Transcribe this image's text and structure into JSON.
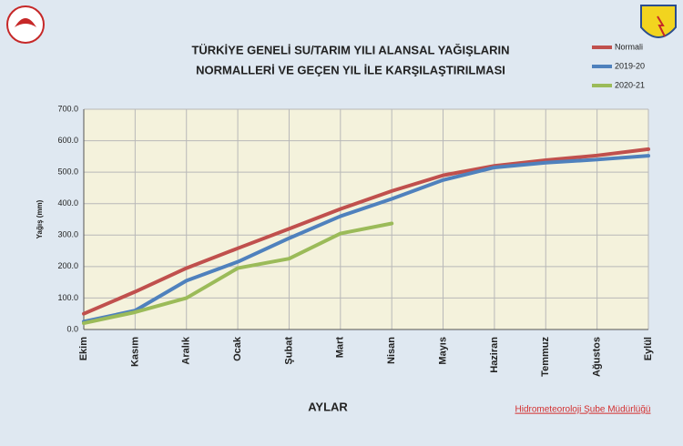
{
  "chart_data": {
    "type": "line",
    "title": [
      "TÜRKİYE GENELİ  SU/TARIM YILI ALANSAL YAĞIŞLARIN",
      "NORMALLERİ VE GEÇEN YIL İLE KARŞILAŞTIRILMASI"
    ],
    "y_label": "Yağış (mm)",
    "x_label": "AYLAR",
    "footer": "Hidrometeoroloji Şube Müdürlüğü",
    "categories": [
      "Ekim",
      "Kasım",
      "Aralık",
      "Ocak",
      "Şubat",
      "Mart",
      "Nisan",
      "Mayıs",
      "Haziran",
      "Temmuz",
      "Ağustos",
      "Eylül"
    ],
    "series": [
      {
        "name": "Normali",
        "color": "#c0504d",
        "values": [
          50,
          120,
          195,
          258,
          320,
          383,
          440,
          490,
          520,
          538,
          553,
          573
        ]
      },
      {
        "name": "2019-20",
        "color": "#4f81bd",
        "values": [
          25,
          60,
          155,
          215,
          290,
          360,
          415,
          475,
          515,
          530,
          540,
          552
        ]
      },
      {
        "name": "2020-21",
        "color": "#9bbb59",
        "values": [
          20,
          55,
          100,
          195,
          225,
          305,
          337,
          null,
          null,
          null,
          null,
          null
        ]
      }
    ],
    "ylim": [
      0,
      700
    ],
    "yticks": [
      {
        "value": 0,
        "label": "0.0"
      },
      {
        "value": 100,
        "label": "100.0"
      },
      {
        "value": 200,
        "label": "200.0"
      },
      {
        "value": 300,
        "label": "300.0"
      },
      {
        "value": 400,
        "label": "400.0"
      },
      {
        "value": 500,
        "label": "500.0"
      },
      {
        "value": 600,
        "label": "600.0"
      },
      {
        "value": 700,
        "label": "700.0"
      }
    ],
    "grid": true,
    "legend": "top-right"
  }
}
